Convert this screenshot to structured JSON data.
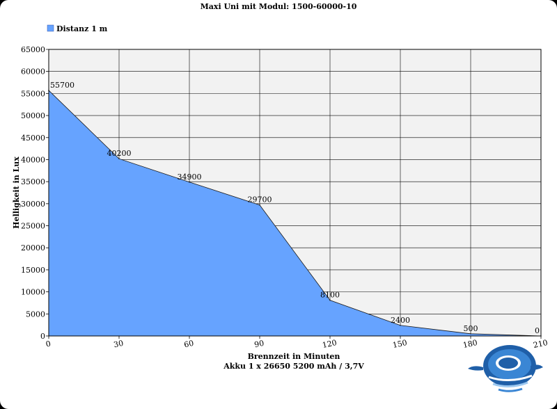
{
  "chart_data": {
    "type": "area",
    "title": "Maxi Uni mit Modul: 1500-60000-10",
    "xlabel": "Brennzeit in Minuten",
    "subtitle": "Akku  1 x 26650 5200 mAh / 3,7V",
    "ylabel": "Helligkeit in Lux",
    "xlim": [
      0,
      210
    ],
    "ylim": [
      0,
      65000
    ],
    "x_ticks": [
      0,
      30,
      60,
      90,
      120,
      150,
      180,
      210
    ],
    "y_ticks": [
      0,
      5000,
      10000,
      15000,
      20000,
      25000,
      30000,
      35000,
      40000,
      45000,
      50000,
      55000,
      60000,
      65000
    ],
    "grid": true,
    "legend_position": "top-left",
    "series": [
      {
        "name": "Distanz 1 m",
        "color": "#66a3ff",
        "x": [
          0,
          30,
          60,
          90,
          120,
          150,
          180,
          210
        ],
        "y": [
          55700,
          40200,
          34900,
          29700,
          8100,
          2400,
          500,
          0
        ]
      }
    ]
  },
  "colors": {
    "plot_background": "#f2f2f2",
    "area_fill": "#66a3ff",
    "grid": "#000000"
  },
  "logo": {
    "icon": "diver-turtle-logo"
  }
}
